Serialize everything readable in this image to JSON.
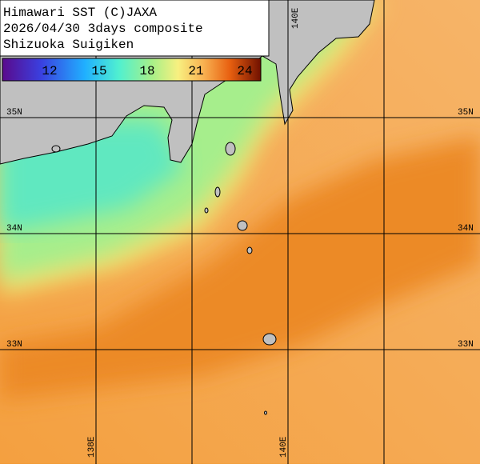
{
  "header": {
    "lines": [
      "Himawari SST (C)JAXA",
      "2026/04/30 3days composite",
      "Shizuoka Suigiken"
    ]
  },
  "colorbar": {
    "labels": [
      "12",
      "15",
      "18",
      "21",
      "24"
    ]
  },
  "grid": {
    "lat_labels": [
      "35N",
      "34N",
      "33N"
    ],
    "lon_labels": [
      "138E",
      "140E"
    ]
  }
}
